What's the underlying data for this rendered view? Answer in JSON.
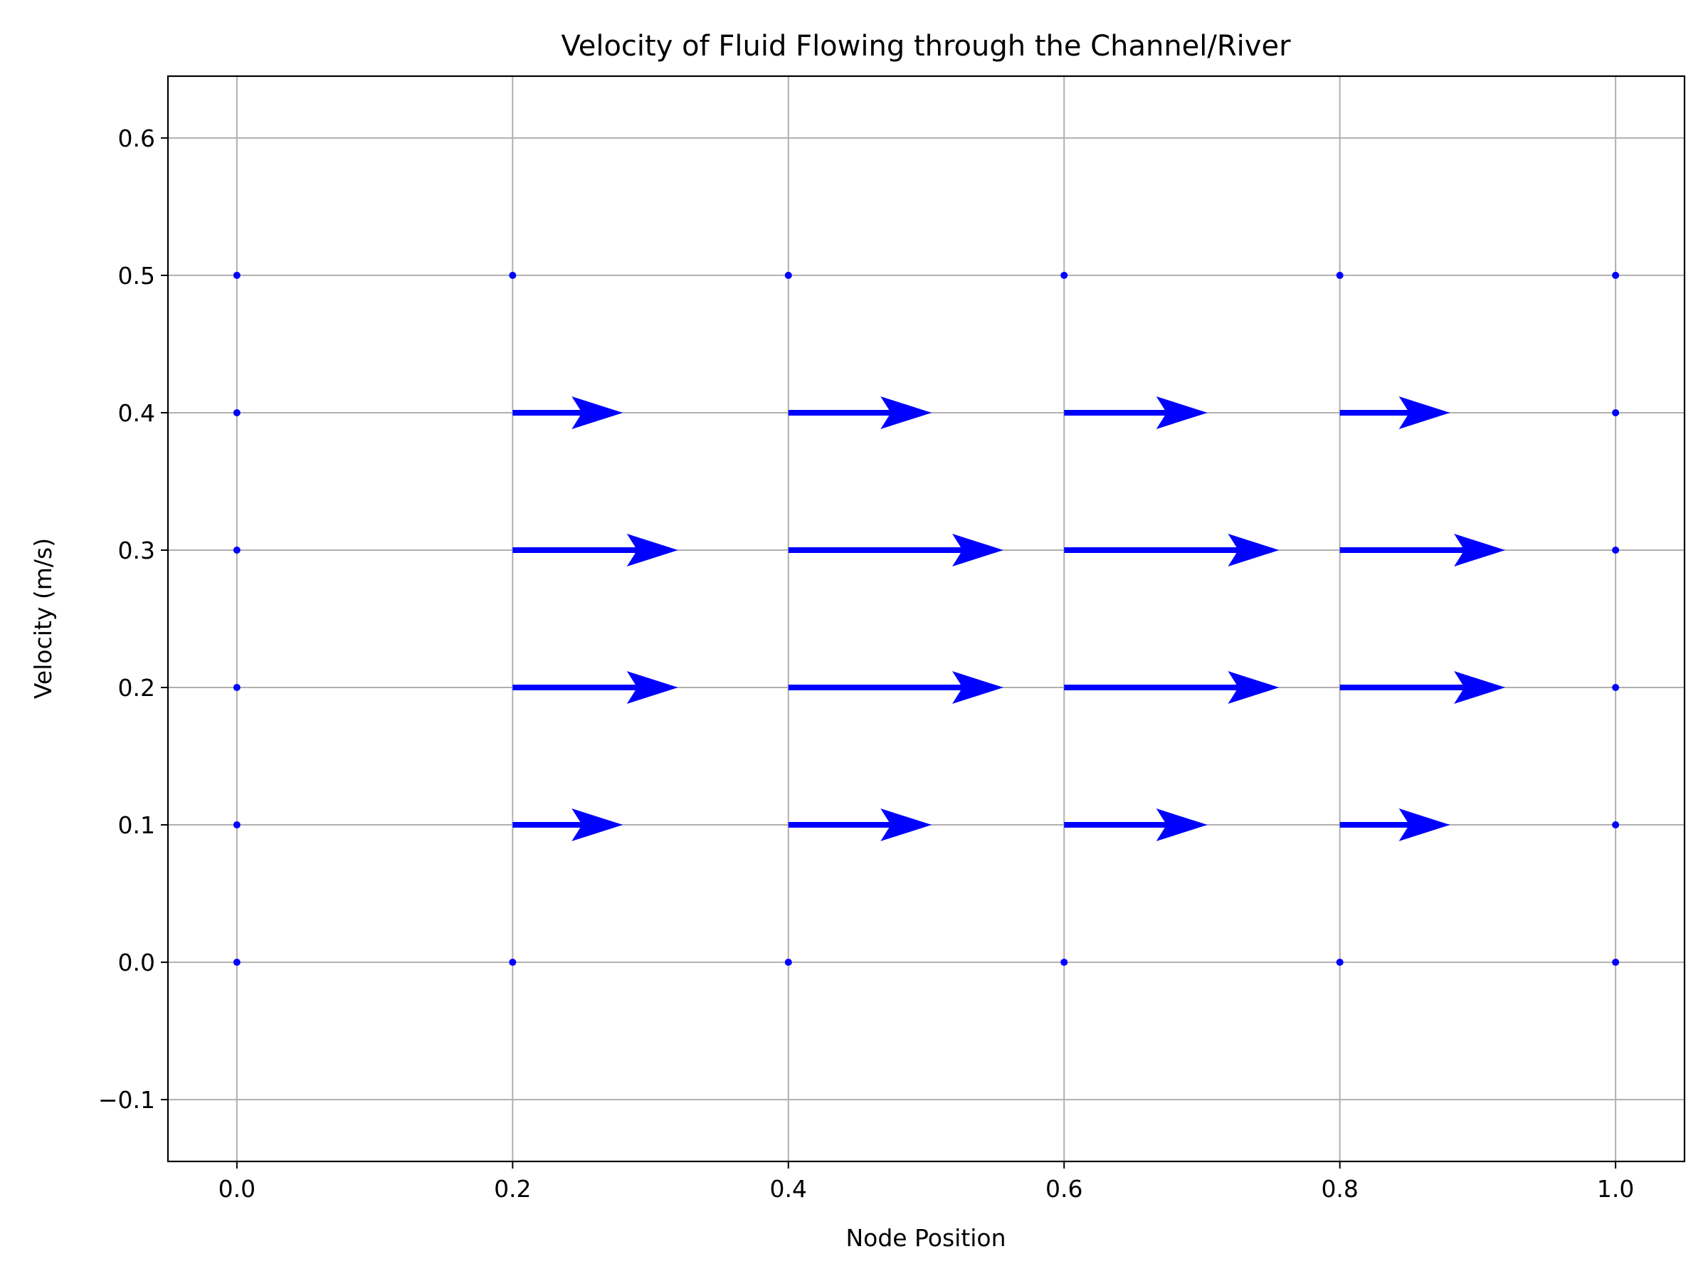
{
  "chart_data": {
    "type": "quiver",
    "title": "Velocity of Fluid Flowing through the Channel/River",
    "xlabel": "Node Position",
    "ylabel": "Velocity (m/s)",
    "xlim": [
      -0.05,
      1.05
    ],
    "ylim": [
      -0.145,
      0.645
    ],
    "xticks": [
      0.0,
      0.2,
      0.4,
      0.6,
      0.8,
      1.0
    ],
    "xtick_labels": [
      "0.0",
      "0.2",
      "0.4",
      "0.6",
      "0.8",
      "1.0"
    ],
    "yticks": [
      -0.1,
      0.0,
      0.1,
      0.2,
      0.3,
      0.4,
      0.5,
      0.6
    ],
    "ytick_labels": [
      "−0.1",
      "0.0",
      "0.1",
      "0.2",
      "0.3",
      "0.4",
      "0.5",
      "0.6"
    ],
    "grid": true,
    "color": "#0000ff",
    "vectors": [
      {
        "x": 0.0,
        "y": 0.0,
        "u": 0.0,
        "v": 0.0
      },
      {
        "x": 0.0,
        "y": 0.1,
        "u": 0.0,
        "v": 0.0
      },
      {
        "x": 0.0,
        "y": 0.2,
        "u": 0.0,
        "v": 0.0
      },
      {
        "x": 0.0,
        "y": 0.3,
        "u": 0.0,
        "v": 0.0
      },
      {
        "x": 0.0,
        "y": 0.4,
        "u": 0.0,
        "v": 0.0
      },
      {
        "x": 0.0,
        "y": 0.5,
        "u": 0.0,
        "v": 0.0
      },
      {
        "x": 0.2,
        "y": 0.0,
        "u": 0.0,
        "v": 0.0
      },
      {
        "x": 0.2,
        "y": 0.1,
        "u": 0.08,
        "v": 0.0
      },
      {
        "x": 0.2,
        "y": 0.2,
        "u": 0.12,
        "v": 0.0
      },
      {
        "x": 0.2,
        "y": 0.3,
        "u": 0.12,
        "v": 0.0
      },
      {
        "x": 0.2,
        "y": 0.4,
        "u": 0.08,
        "v": 0.0
      },
      {
        "x": 0.2,
        "y": 0.5,
        "u": 0.0,
        "v": 0.0
      },
      {
        "x": 0.4,
        "y": 0.0,
        "u": 0.0,
        "v": 0.0
      },
      {
        "x": 0.4,
        "y": 0.1,
        "u": 0.104,
        "v": 0.0
      },
      {
        "x": 0.4,
        "y": 0.2,
        "u": 0.156,
        "v": 0.0
      },
      {
        "x": 0.4,
        "y": 0.3,
        "u": 0.156,
        "v": 0.0
      },
      {
        "x": 0.4,
        "y": 0.4,
        "u": 0.104,
        "v": 0.0
      },
      {
        "x": 0.4,
        "y": 0.5,
        "u": 0.0,
        "v": 0.0
      },
      {
        "x": 0.6,
        "y": 0.0,
        "u": 0.0,
        "v": 0.0
      },
      {
        "x": 0.6,
        "y": 0.1,
        "u": 0.104,
        "v": 0.0
      },
      {
        "x": 0.6,
        "y": 0.2,
        "u": 0.156,
        "v": 0.0
      },
      {
        "x": 0.6,
        "y": 0.3,
        "u": 0.156,
        "v": 0.0
      },
      {
        "x": 0.6,
        "y": 0.4,
        "u": 0.104,
        "v": 0.0
      },
      {
        "x": 0.6,
        "y": 0.5,
        "u": 0.0,
        "v": 0.0
      },
      {
        "x": 0.8,
        "y": 0.0,
        "u": 0.0,
        "v": 0.0
      },
      {
        "x": 0.8,
        "y": 0.1,
        "u": 0.08,
        "v": 0.0
      },
      {
        "x": 0.8,
        "y": 0.2,
        "u": 0.12,
        "v": 0.0
      },
      {
        "x": 0.8,
        "y": 0.3,
        "u": 0.12,
        "v": 0.0
      },
      {
        "x": 0.8,
        "y": 0.4,
        "u": 0.08,
        "v": 0.0
      },
      {
        "x": 0.8,
        "y": 0.5,
        "u": 0.0,
        "v": 0.0
      },
      {
        "x": 1.0,
        "y": 0.0,
        "u": 0.0,
        "v": 0.0
      },
      {
        "x": 1.0,
        "y": 0.1,
        "u": 0.0,
        "v": 0.0
      },
      {
        "x": 1.0,
        "y": 0.2,
        "u": 0.0,
        "v": 0.0
      },
      {
        "x": 1.0,
        "y": 0.3,
        "u": 0.0,
        "v": 0.0
      },
      {
        "x": 1.0,
        "y": 0.4,
        "u": 0.0,
        "v": 0.0
      },
      {
        "x": 1.0,
        "y": 0.5,
        "u": 0.0,
        "v": 0.0
      }
    ]
  }
}
